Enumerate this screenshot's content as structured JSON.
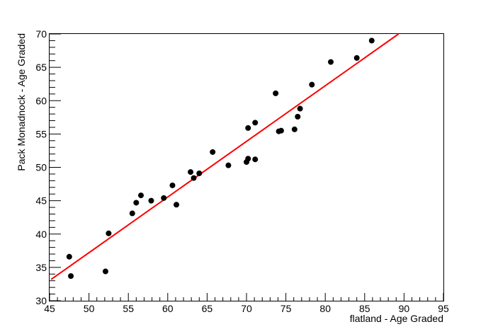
{
  "chart_data": {
    "type": "scatter",
    "title": "",
    "xlabel": "flatland - Age Graded",
    "ylabel": "Pack Monadnock - Age Graded",
    "xlim": [
      45,
      95
    ],
    "ylim": [
      30,
      70
    ],
    "x_ticks": [
      45,
      50,
      55,
      60,
      65,
      70,
      75,
      80,
      85,
      90,
      95
    ],
    "y_ticks": [
      30,
      35,
      40,
      45,
      50,
      55,
      60,
      65,
      70
    ],
    "grid": false,
    "legend": "none",
    "marker_color": "#000000",
    "fit_line_color": "#ff0000",
    "points": [
      {
        "x": 47.5,
        "y": 36.6
      },
      {
        "x": 47.7,
        "y": 33.7
      },
      {
        "x": 52.1,
        "y": 34.4
      },
      {
        "x": 52.5,
        "y": 40.1
      },
      {
        "x": 55.5,
        "y": 43.1
      },
      {
        "x": 56.0,
        "y": 44.7
      },
      {
        "x": 56.6,
        "y": 45.8
      },
      {
        "x": 57.9,
        "y": 45.0
      },
      {
        "x": 59.5,
        "y": 45.4
      },
      {
        "x": 60.6,
        "y": 47.3
      },
      {
        "x": 61.1,
        "y": 44.4
      },
      {
        "x": 62.9,
        "y": 49.3
      },
      {
        "x": 63.3,
        "y": 48.4
      },
      {
        "x": 64.0,
        "y": 49.1
      },
      {
        "x": 65.7,
        "y": 52.3
      },
      {
        "x": 67.7,
        "y": 50.3
      },
      {
        "x": 70.0,
        "y": 50.8
      },
      {
        "x": 70.2,
        "y": 51.3
      },
      {
        "x": 70.2,
        "y": 55.9
      },
      {
        "x": 71.1,
        "y": 56.7
      },
      {
        "x": 71.1,
        "y": 51.2
      },
      {
        "x": 73.7,
        "y": 61.1
      },
      {
        "x": 74.1,
        "y": 55.4
      },
      {
        "x": 74.4,
        "y": 55.5
      },
      {
        "x": 76.1,
        "y": 55.7
      },
      {
        "x": 76.5,
        "y": 57.6
      },
      {
        "x": 76.8,
        "y": 58.8
      },
      {
        "x": 78.3,
        "y": 62.4
      },
      {
        "x": 80.7,
        "y": 65.8
      },
      {
        "x": 84.0,
        "y": 66.4
      },
      {
        "x": 85.9,
        "y": 69.0
      }
    ],
    "fit_line": {
      "x": [
        45.2,
        89.3
      ],
      "y": [
        33.2,
        70.0
      ]
    }
  }
}
